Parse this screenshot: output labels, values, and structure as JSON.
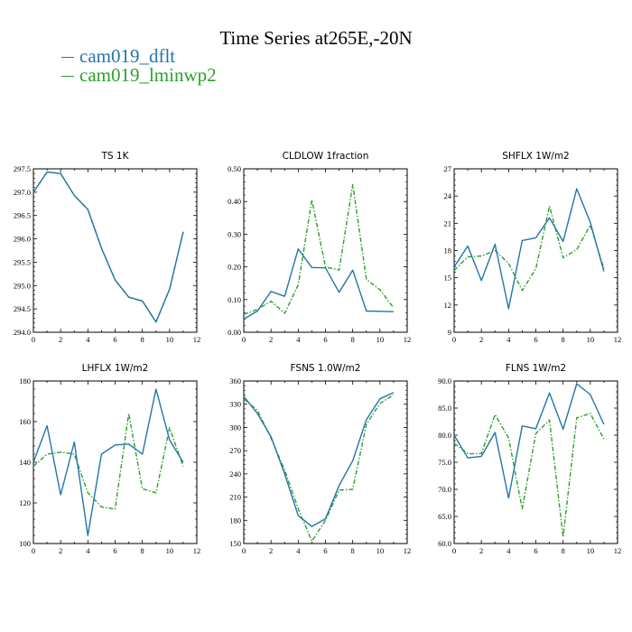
{
  "title": "Time Series at265E,-20N",
  "legend": [
    {
      "label": "cam019_dflt",
      "color": "#2176a8"
    },
    {
      "label": "cam019_lminwp2",
      "color": "#2ca02c"
    }
  ],
  "chart_data": [
    {
      "type": "line",
      "title": "TS   1K",
      "x": [
        0,
        1,
        2,
        3,
        4,
        5,
        6,
        7,
        8,
        9,
        10,
        11
      ],
      "xlim": [
        0,
        12
      ],
      "xticks": [
        0,
        2,
        4,
        6,
        8,
        10,
        12
      ],
      "ylim": [
        294.0,
        297.5
      ],
      "yticks": [
        294.0,
        294.5,
        295.0,
        295.5,
        296.0,
        296.5,
        297.0,
        297.5
      ],
      "ytick_labels": [
        "294.0",
        "294.5",
        "295.0",
        "295.5",
        "296.0",
        "296.5",
        "297.0",
        "297.5"
      ],
      "series": [
        {
          "name": "cam019_dflt",
          "values": [
            297.0,
            297.43,
            297.4,
            296.93,
            296.63,
            295.8,
            295.12,
            294.75,
            294.67,
            294.22,
            294.92,
            296.15
          ]
        },
        {
          "name": "cam019_lminwp2",
          "values": [
            297.0,
            297.43,
            297.4,
            296.93,
            296.63,
            295.8,
            295.12,
            294.75,
            294.67,
            294.22,
            294.92,
            296.15
          ]
        }
      ]
    },
    {
      "type": "line",
      "title": "CLDLOW   1fraction",
      "x": [
        0,
        1,
        2,
        3,
        4,
        5,
        6,
        7,
        8,
        9,
        10,
        11
      ],
      "xlim": [
        0,
        12
      ],
      "xticks": [
        0,
        2,
        4,
        6,
        8,
        10,
        12
      ],
      "ylim": [
        0,
        0.5
      ],
      "yticks": [
        0,
        0.1,
        0.2,
        0.3,
        0.4,
        0.5
      ],
      "ytick_labels": [
        "0.00",
        "0.10",
        "0.20",
        "0.30",
        "0.40",
        "0.50"
      ],
      "series": [
        {
          "name": "cam019_dflt",
          "values": [
            0.04,
            0.065,
            0.125,
            0.11,
            0.255,
            0.198,
            0.197,
            0.122,
            0.19,
            0.065,
            0.064,
            0.063
          ]
        },
        {
          "name": "cam019_lminwp2",
          "values": [
            0.055,
            0.07,
            0.095,
            0.058,
            0.145,
            0.405,
            0.2,
            0.19,
            0.452,
            0.162,
            0.13,
            0.075
          ]
        }
      ]
    },
    {
      "type": "line",
      "title": "SHFLX   1W/m2",
      "x": [
        0,
        1,
        2,
        3,
        4,
        5,
        6,
        7,
        8,
        9,
        10,
        11
      ],
      "xlim": [
        0,
        12
      ],
      "xticks": [
        0,
        2,
        4,
        6,
        8,
        10,
        12
      ],
      "ylim": [
        9,
        27
      ],
      "yticks": [
        9,
        12,
        15,
        18,
        21,
        24,
        27
      ],
      "ytick_labels": [
        "9",
        "12",
        "15",
        "18",
        "21",
        "24",
        "27"
      ],
      "series": [
        {
          "name": "cam019_dflt",
          "values": [
            16.2,
            18.5,
            14.7,
            18.7,
            11.6,
            19.1,
            19.4,
            21.6,
            19.0,
            24.8,
            21.1,
            15.7
          ]
        },
        {
          "name": "cam019_lminwp2",
          "values": [
            15.8,
            17.3,
            17.4,
            18.0,
            16.6,
            13.6,
            16.0,
            22.9,
            17.2,
            18.1,
            20.8,
            16.0
          ]
        }
      ]
    },
    {
      "type": "line",
      "title": "LHFLX   1W/m2",
      "x": [
        0,
        1,
        2,
        3,
        4,
        5,
        6,
        7,
        8,
        9,
        10,
        11
      ],
      "xlim": [
        0,
        12
      ],
      "xticks": [
        0,
        2,
        4,
        6,
        8,
        10,
        12
      ],
      "ylim": [
        100,
        180
      ],
      "yticks": [
        100,
        120,
        140,
        160,
        180
      ],
      "ytick_labels": [
        "100",
        "120",
        "140",
        "160",
        "180"
      ],
      "series": [
        {
          "name": "cam019_dflt",
          "values": [
            140,
            158,
            124,
            150,
            104,
            144,
            148.5,
            149,
            144,
            176,
            151,
            140
          ]
        },
        {
          "name": "cam019_lminwp2",
          "values": [
            138,
            144,
            145,
            144,
            125,
            118,
            117,
            164,
            127,
            125,
            157,
            138
          ]
        }
      ]
    },
    {
      "type": "line",
      "title": "FSNS   1.0W/m2",
      "x": [
        0,
        1,
        2,
        3,
        4,
        5,
        6,
        7,
        8,
        9,
        10,
        11
      ],
      "xlim": [
        0,
        12
      ],
      "xticks": [
        0,
        2,
        4,
        6,
        8,
        10,
        12
      ],
      "ylim": [
        150,
        360
      ],
      "yticks": [
        150,
        180,
        210,
        240,
        270,
        300,
        330,
        360
      ],
      "ytick_labels": [
        "150",
        "180",
        "210",
        "240",
        "270",
        "300",
        "330",
        "360"
      ],
      "series": [
        {
          "name": "cam019_dflt",
          "values": [
            340,
            318,
            288,
            240,
            186,
            172,
            182,
            225,
            257,
            310,
            337,
            345
          ]
        },
        {
          "name": "cam019_lminwp2",
          "values": [
            337,
            322,
            286,
            245,
            195,
            153,
            180,
            219,
            220,
            304,
            331,
            342
          ]
        }
      ]
    },
    {
      "type": "line",
      "title": "FLNS   1W/m2",
      "x": [
        0,
        1,
        2,
        3,
        4,
        5,
        6,
        7,
        8,
        9,
        10,
        11
      ],
      "xlim": [
        0,
        12
      ],
      "xticks": [
        0,
        2,
        4,
        6,
        8,
        10,
        12
      ],
      "ylim": [
        60,
        90
      ],
      "yticks": [
        60,
        65,
        70,
        75,
        80,
        85,
        90
      ],
      "ytick_labels": [
        "60.0",
        "65.0",
        "70.0",
        "75.0",
        "80.0",
        "85.0",
        "90.0"
      ],
      "series": [
        {
          "name": "cam019_dflt",
          "values": [
            80,
            75.8,
            76.1,
            80.5,
            68.4,
            81.7,
            81.2,
            87.8,
            81.1,
            89.5,
            87.5,
            82.0
          ]
        },
        {
          "name": "cam019_lminwp2",
          "values": [
            78.5,
            76.6,
            76.6,
            83.8,
            79.5,
            66.4,
            80.3,
            82.8,
            61.2,
            83.2,
            84.0,
            79.3
          ]
        }
      ]
    }
  ]
}
